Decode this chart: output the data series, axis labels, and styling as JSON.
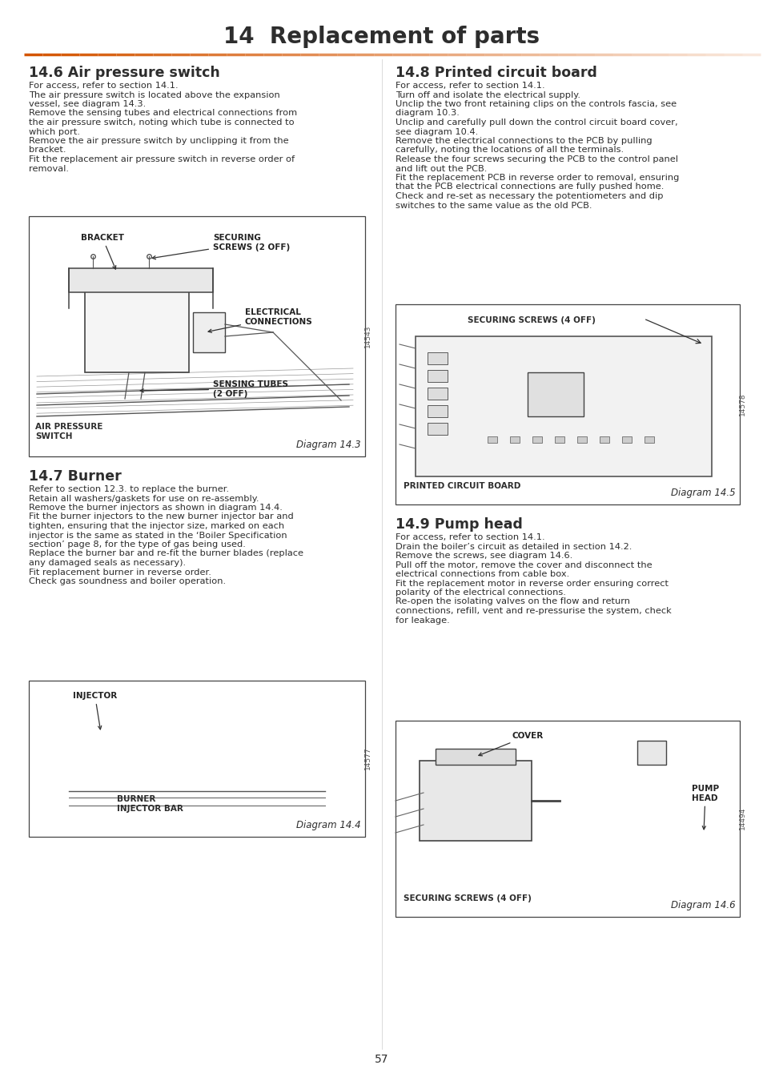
{
  "title": "14  Replacement of parts",
  "title_fontsize": 20,
  "orange_line_left_color": "#d45500",
  "orange_line_right_color": "#f0a060",
  "background_color": "#ffffff",
  "page_number": "57",
  "text_color": "#2d2d2d",
  "body_fontsize": 8.2,
  "heading_fontsize": 12.5,
  "section_46": {
    "heading": "14.6 Air pressure switch",
    "body_lines": [
      "For access, refer to section 14.1.",
      "The air pressure switch is located above the expansion",
      "vessel, see diagram 14.3.",
      "Remove the sensing tubes and electrical connections from",
      "the air pressure switch, noting which tube is connected to",
      "which port.",
      "Remove the air pressure switch by unclipping it from the",
      "bracket.",
      "Fit the replacement air pressure switch in reverse order of",
      "removal."
    ],
    "diagram_label": "Diagram 14.3",
    "diagram_number": "14543"
  },
  "section_47": {
    "heading": "14.7 Burner",
    "body_lines": [
      "Refer to section 12.3. to replace the burner.",
      "Retain all washers/gaskets for use on re-assembly.",
      "Remove the burner injectors as shown in diagram 14.4.",
      "Fit the burner injectors to the new burner injector bar and",
      "tighten, ensuring that the injector size, marked on each",
      "injector is the same as stated in the ‘Boiler Specification",
      "section’ page 8, for the type of gas being used.",
      "Replace the burner bar and re-fit the burner blades (replace",
      "any damaged seals as necessary).",
      "Fit replacement burner in reverse order.",
      "Check gas soundness and boiler operation."
    ],
    "diagram_label": "Diagram 14.4",
    "diagram_number": "14577"
  },
  "section_48": {
    "heading": "14.8 Printed circuit board",
    "body_lines": [
      "For access, refer to section 14.1.",
      "Turn off and isolate the electrical supply.",
      "Unclip the two front retaining clips on the controls fascia, see",
      "diagram 10.3.",
      "Unclip and carefully pull down the control circuit board cover,",
      "see diagram 10.4.",
      "Remove the electrical connections to the PCB by pulling",
      "carefully, noting the locations of all the terminals.",
      "Release the four screws securing the PCB to the control panel",
      "and lift out the PCB.",
      "Fit the replacement PCB in reverse order to removal, ensuring",
      "that the PCB electrical connections are fully pushed home.",
      "Check and re-set as necessary the potentiometers and dip",
      "switches to the same value as the old PCB."
    ],
    "diagram_label": "Diagram 14.5",
    "diagram_number": "14578"
  },
  "section_49": {
    "heading": "14.9 Pump head",
    "body_lines": [
      "For access, refer to section 14.1.",
      "Drain the boiler’s circuit as detailed in section 14.2.",
      "Remove the screws, see diagram 14.6.",
      "Pull off the motor, remove the cover and disconnect the",
      "electrical connections from cable box.",
      "Fit the replacement motor in reverse order ensuring correct",
      "polarity of the electrical connections.",
      "Re-open the isolating valves on the flow and return",
      "connections, refill, vent and re-pressurise the system, check",
      "for leakage."
    ],
    "diagram_label": "Diagram 14.6",
    "diagram_number": "14494"
  }
}
